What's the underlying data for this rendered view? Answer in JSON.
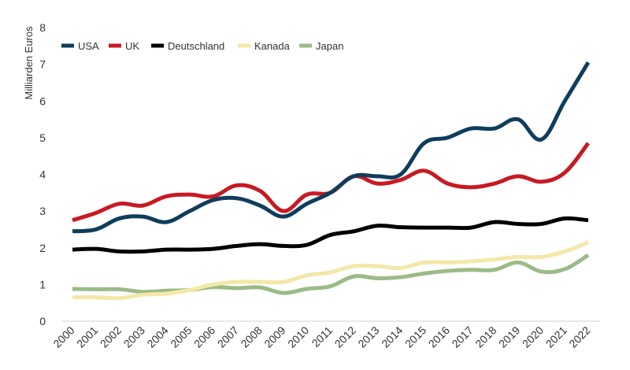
{
  "chart_data": {
    "type": "line",
    "title": "",
    "xlabel": "",
    "ylabel": "Milliarden Euros",
    "ylim": [
      0,
      8
    ],
    "yticks": [
      "0",
      "1",
      "2",
      "3",
      "4",
      "5",
      "6",
      "7",
      "8"
    ],
    "grid": false,
    "legend_position": "top-left",
    "categories": [
      "2000",
      "2001",
      "2002",
      "2003",
      "2004",
      "2005",
      "2006",
      "2007",
      "2008",
      "2009",
      "2010",
      "2011",
      "2012",
      "2013",
      "2014",
      "2015",
      "2016",
      "2017",
      "2018",
      "2019",
      "2020",
      "2021",
      "2022"
    ],
    "series": [
      {
        "name": "USA",
        "color": "#0f3d5c",
        "values": [
          2.45,
          2.5,
          2.8,
          2.85,
          2.7,
          3.0,
          3.3,
          3.35,
          3.15,
          2.85,
          3.2,
          3.5,
          3.95,
          3.95,
          4.0,
          4.85,
          5.0,
          5.25,
          5.25,
          5.5,
          4.95,
          6.0,
          7.05
        ]
      },
      {
        "name": "UK",
        "color": "#c71a22",
        "values": [
          2.75,
          2.95,
          3.2,
          3.15,
          3.4,
          3.45,
          3.4,
          3.7,
          3.55,
          3.0,
          3.45,
          3.5,
          3.95,
          3.75,
          3.85,
          4.1,
          3.75,
          3.65,
          3.75,
          3.95,
          3.8,
          4.05,
          4.85
        ]
      },
      {
        "name": "Deutschland",
        "color": "#000000",
        "values": [
          1.95,
          1.97,
          1.9,
          1.9,
          1.95,
          1.95,
          1.97,
          2.05,
          2.1,
          2.05,
          2.08,
          2.35,
          2.45,
          2.6,
          2.56,
          2.55,
          2.55,
          2.55,
          2.7,
          2.65,
          2.65,
          2.8,
          2.75
        ]
      },
      {
        "name": "Kanada",
        "color": "#f3e8a8",
        "values": [
          0.65,
          0.65,
          0.63,
          0.72,
          0.75,
          0.85,
          1.0,
          1.07,
          1.07,
          1.07,
          1.25,
          1.33,
          1.5,
          1.5,
          1.45,
          1.6,
          1.6,
          1.63,
          1.68,
          1.75,
          1.75,
          1.9,
          2.15
        ]
      },
      {
        "name": "Japan",
        "color": "#9bbb87",
        "values": [
          0.88,
          0.87,
          0.87,
          0.8,
          0.83,
          0.85,
          0.93,
          0.9,
          0.92,
          0.77,
          0.88,
          0.95,
          1.22,
          1.17,
          1.2,
          1.3,
          1.37,
          1.4,
          1.4,
          1.6,
          1.35,
          1.42,
          1.8
        ]
      }
    ]
  }
}
